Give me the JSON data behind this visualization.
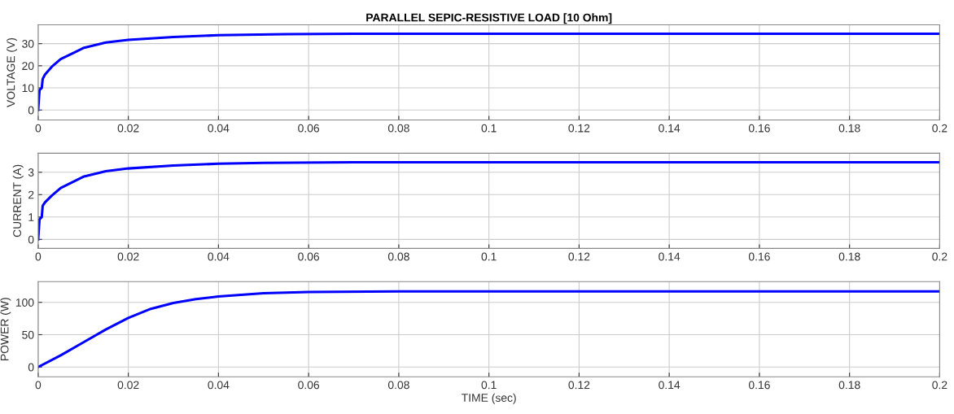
{
  "chart_data": [
    {
      "type": "line",
      "title": "PARALLEL SEPIC-RESISTIVE LOAD [10 Ohm]",
      "ylabel": "VOLTAGE (V)",
      "grid": true,
      "xlim": [
        0,
        0.2
      ],
      "ylim": [
        -4.5,
        38.5
      ],
      "yticks": [
        0,
        10,
        20,
        30
      ],
      "xticks": [
        0,
        0.02,
        0.04,
        0.06,
        0.08,
        0.1,
        0.12,
        0.14,
        0.16,
        0.18,
        0.2
      ],
      "series": [
        {
          "color": "#0000ff",
          "x": [
            0,
            0.0003,
            0.0008,
            0.001,
            0.0015,
            0.003,
            0.005,
            0.008,
            0.01,
            0.015,
            0.02,
            0.03,
            0.04,
            0.055,
            0.07,
            0.2
          ],
          "values": [
            0,
            9,
            10,
            14,
            16,
            19.5,
            23,
            26,
            28,
            30.5,
            31.7,
            33,
            33.8,
            34.3,
            34.5,
            34.5
          ]
        }
      ]
    },
    {
      "type": "line",
      "ylabel": "CURRENT (A)",
      "grid": true,
      "xlim": [
        0,
        0.2
      ],
      "ylim": [
        -0.4,
        3.85
      ],
      "yticks": [
        0,
        1,
        2,
        3
      ],
      "xticks": [
        0,
        0.02,
        0.04,
        0.06,
        0.08,
        0.1,
        0.12,
        0.14,
        0.16,
        0.18,
        0.2
      ],
      "series": [
        {
          "color": "#0000ff",
          "x": [
            0,
            0.0003,
            0.0008,
            0.001,
            0.0015,
            0.003,
            0.005,
            0.008,
            0.01,
            0.015,
            0.02,
            0.03,
            0.04,
            0.05,
            0.07,
            0.2
          ],
          "values": [
            0,
            0.9,
            1.0,
            1.5,
            1.65,
            1.95,
            2.3,
            2.6,
            2.8,
            3.05,
            3.17,
            3.3,
            3.38,
            3.42,
            3.45,
            3.45
          ]
        }
      ]
    },
    {
      "type": "line",
      "ylabel": "POWER (W)",
      "xlabel": "TIME (sec)",
      "grid": true,
      "xlim": [
        0,
        0.2
      ],
      "ylim": [
        -15,
        132
      ],
      "yticks": [
        0,
        50,
        100
      ],
      "xticks": [
        0,
        0.02,
        0.04,
        0.06,
        0.08,
        0.1,
        0.12,
        0.14,
        0.16,
        0.18,
        0.2
      ],
      "series": [
        {
          "color": "#0000ff",
          "x": [
            0,
            0.005,
            0.01,
            0.015,
            0.02,
            0.025,
            0.03,
            0.035,
            0.04,
            0.05,
            0.06,
            0.08,
            0.2
          ],
          "values": [
            0,
            18,
            38,
            58,
            76,
            90,
            99,
            105,
            109,
            114,
            116,
            117,
            117
          ]
        }
      ]
    }
  ]
}
